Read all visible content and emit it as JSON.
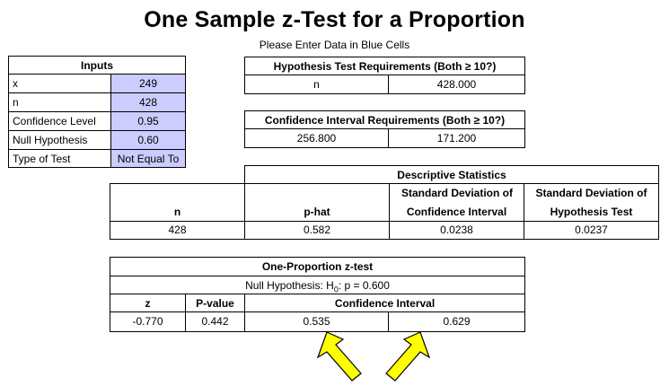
{
  "title": "One Sample z-Test for a Proportion",
  "subtitle": "Please Enter Data in Blue Cells",
  "inputs": {
    "header": "Inputs",
    "rows": [
      {
        "label": "x",
        "value": "249"
      },
      {
        "label": "n",
        "value": "428"
      },
      {
        "label": "Confidence Level",
        "value": "0.95"
      },
      {
        "label": "Null Hypothesis",
        "value": "0.60"
      },
      {
        "label": "Type of Test",
        "value": "Not Equal To"
      }
    ]
  },
  "hyp_req": {
    "header": "Hypothesis Test Requirements (Both ≥ 10?)",
    "label": "n",
    "value": "428.000"
  },
  "ci_req": {
    "header": "Confidence Interval Requirements (Both ≥ 10?)",
    "v1": "256.800",
    "v2": "171.200"
  },
  "desc": {
    "header": "Descriptive Statistics",
    "cols": {
      "n": "n",
      "phat": "p-hat",
      "sd_ci_1": "Standard Deviation of",
      "sd_ci_2": "Confidence Interval",
      "sd_ht_1": "Standard Deviation of",
      "sd_ht_2": "Hypothesis Test"
    },
    "values": {
      "n": "428",
      "phat": "0.582",
      "sd_ci": "0.0238",
      "sd_ht": "0.0237"
    }
  },
  "ztest": {
    "header": "One-Proportion z-test",
    "null_prefix": "Null Hypothesis:  H",
    "null_sub": "0",
    "null_suffix": ":  p = 0.600",
    "col_z": "z",
    "col_p": "P-value",
    "col_ci": "Confidence Interval",
    "z": "-0.770",
    "p": "0.442",
    "ci_low": "0.535",
    "ci_high": "0.629"
  },
  "colors": {
    "input_fill": "#ccccff",
    "arrow_fill": "#ffff00"
  }
}
